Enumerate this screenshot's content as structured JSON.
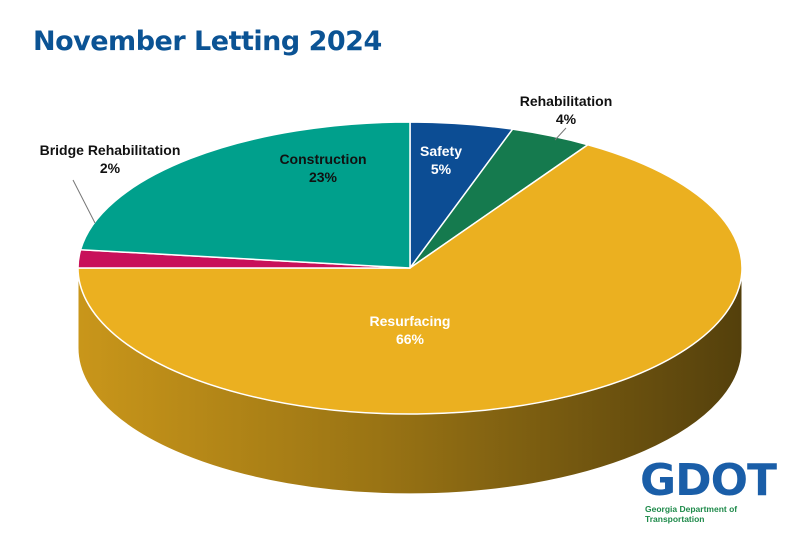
{
  "chart_data": {
    "type": "pie",
    "title": "November Letting 2024",
    "style": "3d",
    "slices": [
      {
        "label": "Safety",
        "value": 5,
        "pct_label": "5%",
        "color": "#0c4d94"
      },
      {
        "label": "Rehabilitation",
        "value": 4,
        "pct_label": "4%",
        "color": "#157a4e"
      },
      {
        "label": "Resurfacing",
        "value": 66,
        "pct_label": "66%",
        "color": "#ebb020"
      },
      {
        "label": "Bridge Rehabilitation",
        "value": 2,
        "pct_label": "2%",
        "color": "#c8105a"
      },
      {
        "label": "Construction",
        "value": 23,
        "pct_label": "23%",
        "color": "#00a08c"
      }
    ]
  },
  "logo": {
    "text": "GDOT",
    "subtitle": "Georgia Department of Transportation",
    "colors": {
      "blue": "#1a5ea8",
      "green": "#1e8a4a"
    }
  }
}
